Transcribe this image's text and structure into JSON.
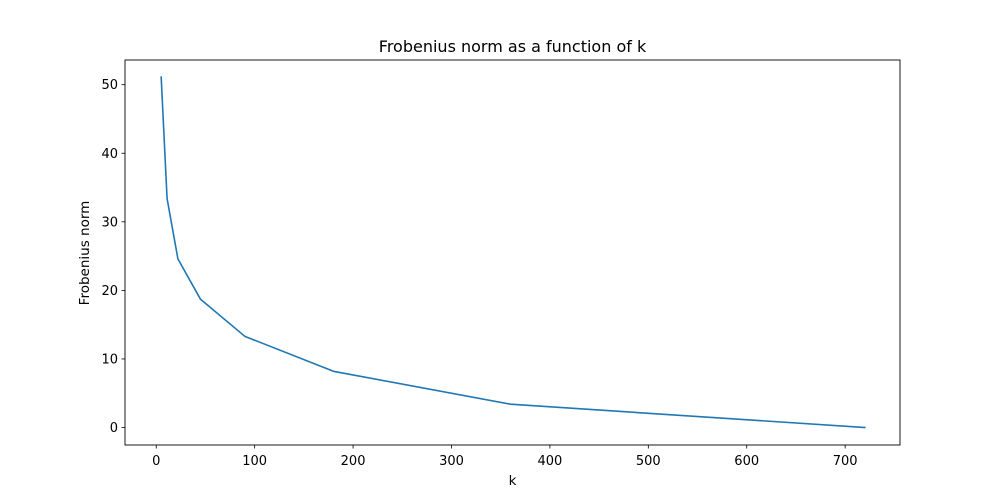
{
  "chart_data": {
    "type": "line",
    "title": "Frobenius norm as a function of k",
    "xlabel": "k",
    "ylabel": "Frobenius norm",
    "xlim": [
      -31.75,
      755.75
    ],
    "ylim": [
      -2.55,
      53.6
    ],
    "xticks": [
      0,
      100,
      200,
      300,
      400,
      500,
      600,
      700
    ],
    "yticks": [
      0,
      10,
      20,
      30,
      40,
      50
    ],
    "grid": false,
    "series": [
      {
        "color": "#1f77b4",
        "x": [
          5,
          11,
          22,
          45,
          90,
          180,
          360,
          720
        ],
        "y": [
          51.1,
          33.4,
          24.6,
          18.7,
          13.3,
          8.2,
          3.4,
          0.0
        ]
      }
    ]
  }
}
